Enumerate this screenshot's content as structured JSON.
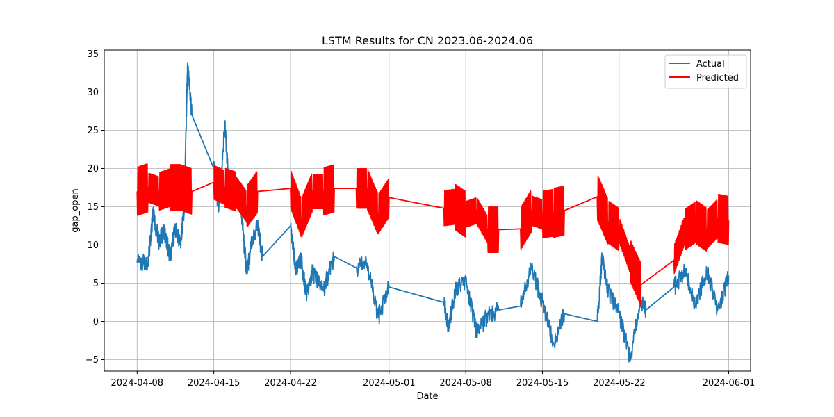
{
  "chart_data": {
    "type": "line",
    "title": "LSTM Results for CN 2023.06-2024.06",
    "xlabel": "Date",
    "ylabel": "gap_open",
    "x_type": "date",
    "xlim": [
      "2024-04-05",
      "2024-06-03"
    ],
    "ylim": [
      -6.5,
      35.5
    ],
    "x_ticks": [
      "2024-04-08",
      "2024-04-15",
      "2024-04-22",
      "2024-05-01",
      "2024-05-08",
      "2024-05-15",
      "2024-05-22",
      "2024-06-01"
    ],
    "y_ticks": [
      -5,
      0,
      5,
      10,
      15,
      20,
      25,
      30,
      35
    ],
    "y_tick_labels": [
      "−5",
      "0",
      "5",
      "10",
      "15",
      "20",
      "25",
      "30",
      "35"
    ],
    "grid": true,
    "legend_position": "top-right",
    "series": [
      {
        "name": "Actual",
        "color": "#1f77b4",
        "x": [
          "2024-04-08",
          "2024-04-09",
          "2024-04-09",
          "2024-04-10",
          "2024-04-10",
          "2024-04-11",
          "2024-04-11",
          "2024-04-12",
          "2024-04-12",
          "2024-04-12",
          "2024-04-13",
          "2024-04-15",
          "2024-04-15",
          "2024-04-16",
          "2024-04-16",
          "2024-04-17",
          "2024-04-17",
          "2024-04-18",
          "2024-04-18",
          "2024-04-19",
          "2024-04-19",
          "2024-04-22",
          "2024-04-22",
          "2024-04-23",
          "2024-04-23",
          "2024-04-24",
          "2024-04-25",
          "2024-04-26",
          "2024-04-28",
          "2024-04-29",
          "2024-04-30",
          "2024-05-01",
          "2024-05-06",
          "2024-05-06",
          "2024-05-07",
          "2024-05-08",
          "2024-05-09",
          "2024-05-10",
          "2024-05-11",
          "2024-05-13",
          "2024-05-14",
          "2024-05-15",
          "2024-05-16",
          "2024-05-17",
          "2024-05-20",
          "2024-05-20",
          "2024-05-21",
          "2024-05-22",
          "2024-05-23",
          "2024-05-24",
          "2024-05-24",
          "2024-05-27",
          "2024-05-28",
          "2024-05-29",
          "2024-05-30",
          "2024-05-31",
          "2024-06-01"
        ],
        "values": [
          7.7,
          7.7,
          14.0,
          10.5,
          12.0,
          8.5,
          12.0,
          10.5,
          15.0,
          33.5,
          27.0,
          20.0,
          14.5,
          26.0,
          16.0,
          19.0,
          15.0,
          6.5,
          10.0,
          12.5,
          8.5,
          12.5,
          7.0,
          8.0,
          3.5,
          6.5,
          4.0,
          8.5,
          7.0,
          7.5,
          0.5,
          4.5,
          2.5,
          -1.0,
          4.0,
          5.5,
          -1.5,
          0.7,
          1.5,
          2.0,
          7.0,
          2.5,
          -3.0,
          1.0,
          0.0,
          8.5,
          4.0,
          1.0,
          -4.8,
          2.5,
          1.5,
          4.5,
          6.5,
          2.0,
          6.8,
          1.5,
          6.0
        ]
      },
      {
        "name": "Predicted",
        "color": "#ff0000",
        "x": [
          "2024-04-08",
          "2024-04-09",
          "2024-04-10",
          "2024-04-11",
          "2024-04-12",
          "2024-04-13",
          "2024-04-15",
          "2024-04-16",
          "2024-04-17",
          "2024-04-18",
          "2024-04-19",
          "2024-04-22",
          "2024-04-23",
          "2024-04-24",
          "2024-04-25",
          "2024-04-26",
          "2024-04-28",
          "2024-04-29",
          "2024-04-30",
          "2024-05-01",
          "2024-05-06",
          "2024-05-07",
          "2024-05-08",
          "2024-05-09",
          "2024-05-10",
          "2024-05-11",
          "2024-05-13",
          "2024-05-14",
          "2024-05-15",
          "2024-05-16",
          "2024-05-17",
          "2024-05-20",
          "2024-05-21",
          "2024-05-22",
          "2024-05-23",
          "2024-05-24",
          "2024-05-27",
          "2024-05-28",
          "2024-05-29",
          "2024-05-30",
          "2024-05-31",
          "2024-06-01"
        ],
        "values": [
          17.0,
          17.5,
          17.0,
          17.5,
          17.5,
          17.0,
          18.2,
          17.5,
          17.0,
          15.0,
          17.0,
          17.4,
          13.5,
          17.0,
          17.0,
          17.4,
          17.4,
          17.4,
          14.0,
          16.2,
          14.8,
          15.0,
          14.0,
          14.5,
          12.0,
          12.0,
          12.1,
          14.5,
          14.0,
          14.2,
          14.5,
          16.3,
          13.0,
          12.0,
          8.0,
          4.8,
          8.0,
          12.0,
          13.0,
          12.0,
          13.5,
          13.2
        ]
      }
    ]
  }
}
